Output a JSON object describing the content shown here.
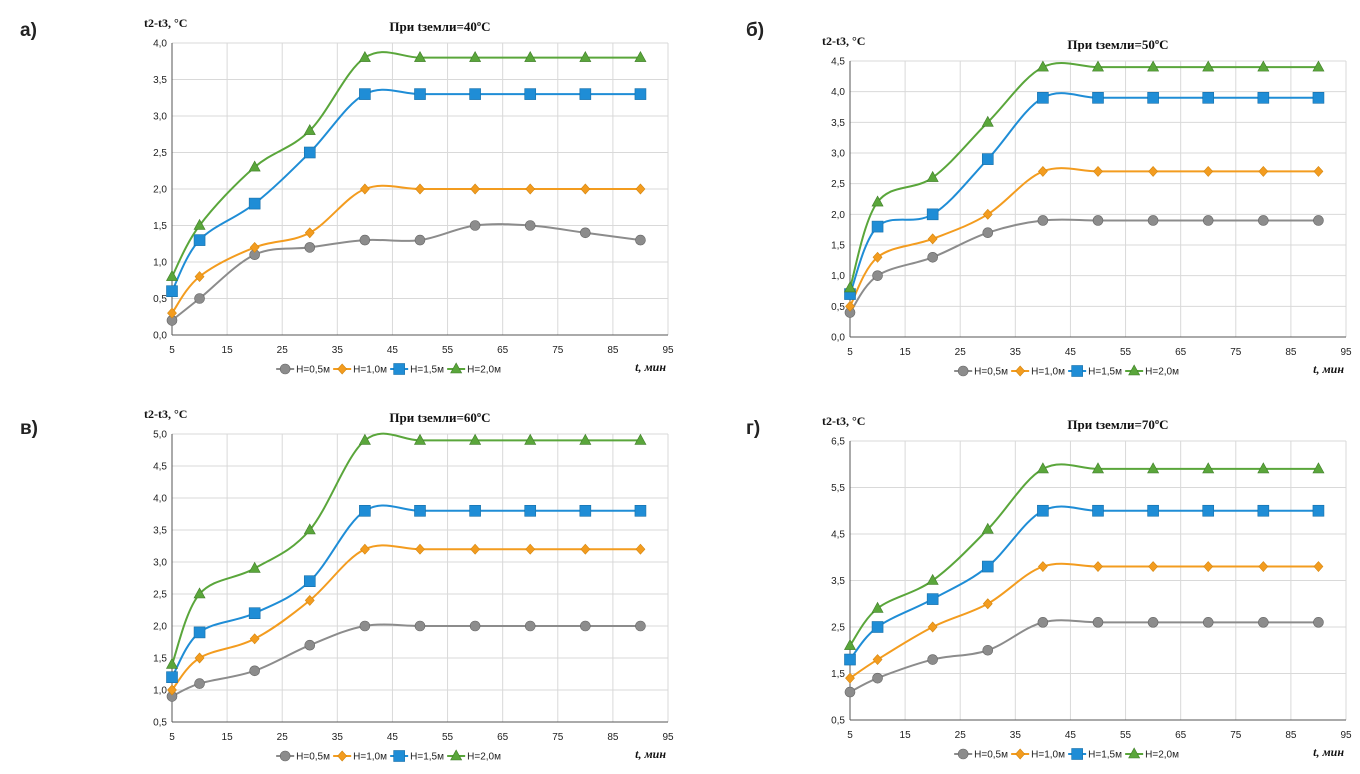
{
  "panel_letters": [
    "а)",
    "б)",
    "в)",
    "г)"
  ],
  "series_colors": [
    "#8c8c8c",
    "#f39c1f",
    "#1f8dd6",
    "#5aa63b"
  ],
  "series_markers": [
    "circle",
    "diamond",
    "square",
    "triangle"
  ],
  "chart_data": [
    {
      "type": "line",
      "title": "При tземли=40ºС",
      "ylabel": "t2-t3, °С",
      "xlabel": "t, мин",
      "x": [
        5,
        10,
        20,
        30,
        40,
        50,
        60,
        70,
        80,
        90
      ],
      "xlim": [
        5,
        95
      ],
      "xticks": [
        5,
        15,
        25,
        35,
        45,
        55,
        65,
        75,
        85,
        95
      ],
      "ylim": [
        0,
        4
      ],
      "yticks": [
        "0,0",
        "0,5",
        "1,0",
        "1,5",
        "2,0",
        "2,5",
        "3,0",
        "3,5",
        "4,0"
      ],
      "grid": true,
      "legend": "bottom",
      "series": [
        {
          "name": "H=0,5м",
          "values": [
            0.2,
            0.5,
            1.1,
            1.2,
            1.3,
            1.3,
            1.5,
            1.5,
            1.4,
            1.3
          ]
        },
        {
          "name": "H=1,0м",
          "values": [
            0.3,
            0.8,
            1.2,
            1.4,
            2.0,
            2.0,
            2.0,
            2.0,
            2.0,
            2.0
          ]
        },
        {
          "name": "H=1,5м",
          "values": [
            0.6,
            1.3,
            1.8,
            2.5,
            3.3,
            3.3,
            3.3,
            3.3,
            3.3,
            3.3
          ]
        },
        {
          "name": "H=2,0м",
          "values": [
            0.8,
            1.5,
            2.3,
            2.8,
            3.8,
            3.8,
            3.8,
            3.8,
            3.8,
            3.8
          ]
        }
      ]
    },
    {
      "type": "line",
      "title": "При tземли=50ºС",
      "ylabel": "t2-t3, °С",
      "xlabel": "t, мин",
      "x": [
        5,
        10,
        20,
        30,
        40,
        50,
        60,
        70,
        80,
        90
      ],
      "xlim": [
        5,
        95
      ],
      "xticks": [
        5,
        15,
        25,
        35,
        45,
        55,
        65,
        75,
        85,
        95
      ],
      "ylim": [
        0,
        4.5
      ],
      "yticks": [
        "0,0",
        "0,5",
        "1,0",
        "1,5",
        "2,0",
        "2,5",
        "3,0",
        "3,5",
        "4,0",
        "4,5"
      ],
      "grid": true,
      "legend": "bottom",
      "series": [
        {
          "name": "H=0,5м",
          "values": [
            0.4,
            1.0,
            1.3,
            1.7,
            1.9,
            1.9,
            1.9,
            1.9,
            1.9,
            1.9
          ]
        },
        {
          "name": "H=1,0м",
          "values": [
            0.5,
            1.3,
            1.6,
            2.0,
            2.7,
            2.7,
            2.7,
            2.7,
            2.7,
            2.7
          ]
        },
        {
          "name": "H=1,5м",
          "values": [
            0.7,
            1.8,
            2.0,
            2.9,
            3.9,
            3.9,
            3.9,
            3.9,
            3.9,
            3.9
          ]
        },
        {
          "name": "H=2,0м",
          "values": [
            0.8,
            2.2,
            2.6,
            3.5,
            4.4,
            4.4,
            4.4,
            4.4,
            4.4,
            4.4
          ]
        }
      ]
    },
    {
      "type": "line",
      "title": "При tземли=60ºС",
      "ylabel": "t2-t3, °С",
      "xlabel": "t, мин",
      "x": [
        5,
        10,
        20,
        30,
        40,
        50,
        60,
        70,
        80,
        90
      ],
      "xlim": [
        5,
        95
      ],
      "xticks": [
        5,
        15,
        25,
        35,
        45,
        55,
        65,
        75,
        85,
        95
      ],
      "ylim": [
        0.5,
        5
      ],
      "yticks": [
        "0,5",
        "1,0",
        "1,5",
        "2,0",
        "2,5",
        "3,0",
        "3,5",
        "4,0",
        "4,5",
        "5,0"
      ],
      "grid": true,
      "legend": "bottom",
      "series": [
        {
          "name": "H=0,5м",
          "values": [
            0.9,
            1.1,
            1.3,
            1.7,
            2.0,
            2.0,
            2.0,
            2.0,
            2.0,
            2.0
          ]
        },
        {
          "name": "H=1,0м",
          "values": [
            1.0,
            1.5,
            1.8,
            2.4,
            3.2,
            3.2,
            3.2,
            3.2,
            3.2,
            3.2
          ]
        },
        {
          "name": "H=1,5м",
          "values": [
            1.2,
            1.9,
            2.2,
            2.7,
            3.8,
            3.8,
            3.8,
            3.8,
            3.8,
            3.8
          ]
        },
        {
          "name": "H=2,0м",
          "values": [
            1.4,
            2.5,
            2.9,
            3.5,
            4.9,
            4.9,
            4.9,
            4.9,
            4.9,
            4.9
          ]
        }
      ]
    },
    {
      "type": "line",
      "title": "При tземли=70ºС",
      "ylabel": "t2-t3, °С",
      "xlabel": "t, мин",
      "x": [
        5,
        10,
        20,
        30,
        40,
        50,
        60,
        70,
        80,
        90
      ],
      "xlim": [
        5,
        95
      ],
      "xticks": [
        5,
        15,
        25,
        35,
        45,
        55,
        65,
        75,
        85,
        95
      ],
      "ylim": [
        0.5,
        6.5
      ],
      "yticks": [
        "0,5",
        "1,5",
        "2,5",
        "3,5",
        "4,5",
        "5,5",
        "6,5"
      ],
      "grid": true,
      "legend": "bottom",
      "series": [
        {
          "name": "H=0,5м",
          "values": [
            1.1,
            1.4,
            1.8,
            2.0,
            2.6,
            2.6,
            2.6,
            2.6,
            2.6,
            2.6
          ]
        },
        {
          "name": "H=1,0м",
          "values": [
            1.4,
            1.8,
            2.5,
            3.0,
            3.8,
            3.8,
            3.8,
            3.8,
            3.8,
            3.8
          ]
        },
        {
          "name": "H=1,5м",
          "values": [
            1.8,
            2.5,
            3.1,
            3.8,
            5.0,
            5.0,
            5.0,
            5.0,
            5.0,
            5.0
          ]
        },
        {
          "name": "H=2,0м",
          "values": [
            2.1,
            2.9,
            3.5,
            4.6,
            5.9,
            5.9,
            5.9,
            5.9,
            5.9,
            5.9
          ]
        }
      ]
    }
  ]
}
